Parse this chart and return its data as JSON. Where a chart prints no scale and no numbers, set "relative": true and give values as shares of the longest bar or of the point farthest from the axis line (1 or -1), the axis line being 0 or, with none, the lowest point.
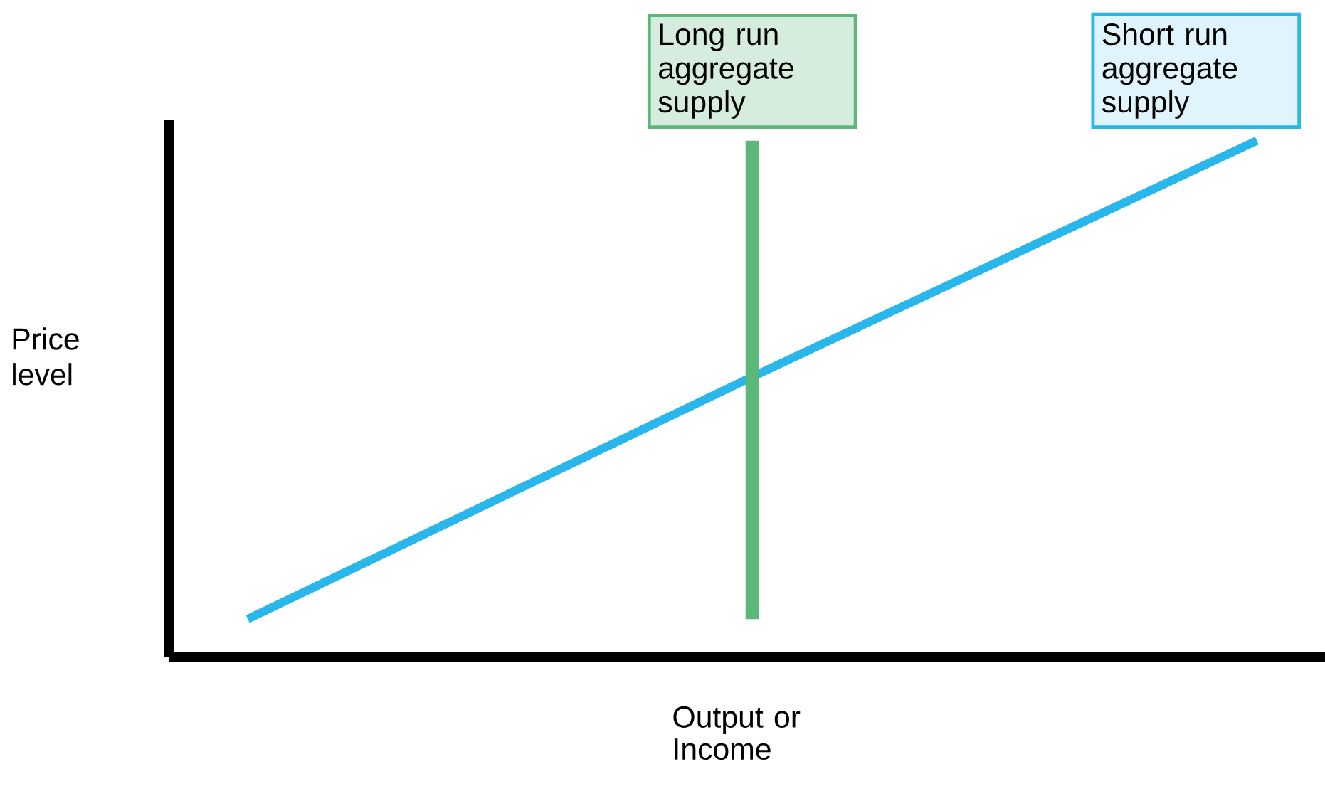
{
  "chart_data": {
    "type": "line",
    "relative": true,
    "xlabel": "Output or Income",
    "ylabel": "Price level",
    "categories": [
      null,
      null,
      null
    ],
    "series": [
      {
        "name": "Short run aggregate supply",
        "color": "#29b6ea",
        "values": [
          0.074,
          0.543,
          1
        ]
      }
    ],
    "annotations": [
      "Long run aggregate supply"
    ]
  }
}
